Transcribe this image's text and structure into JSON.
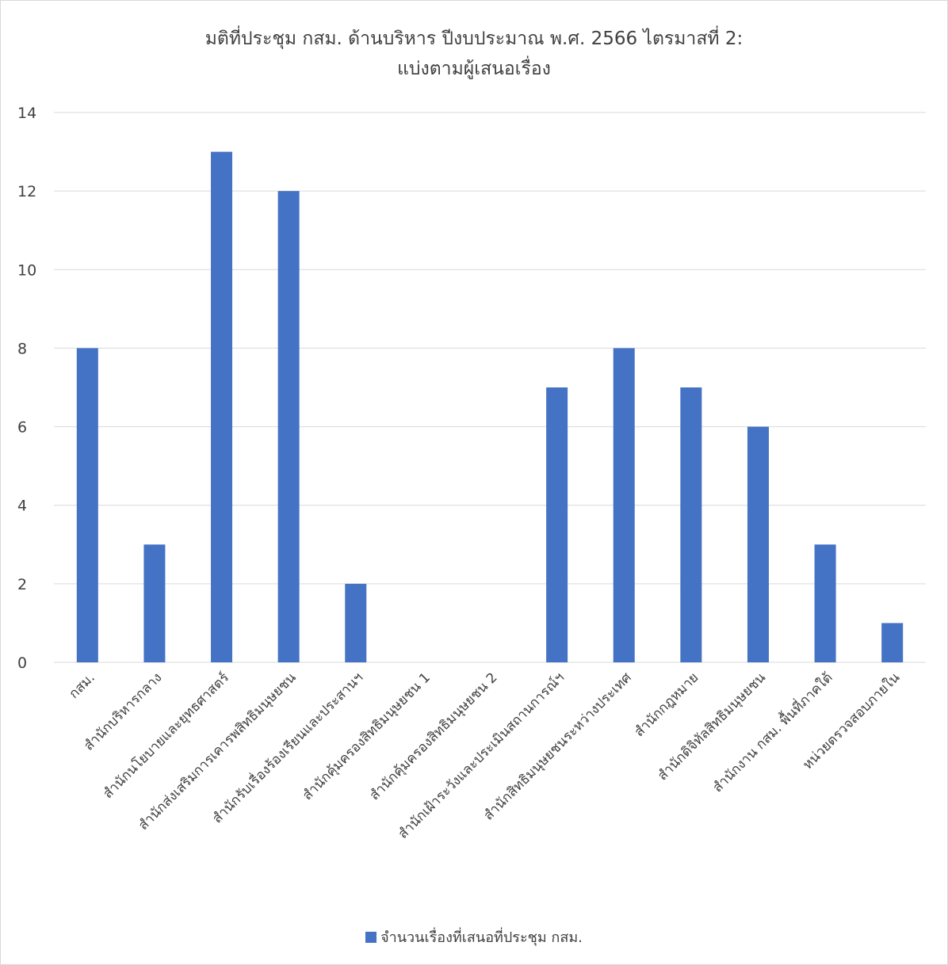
{
  "chart_data": {
    "type": "bar",
    "title_lines": [
      "มติที่ประชุม กสม. ด้านบริหาร ปีงบประมาณ พ.ศ. 2566 ไตรมาสที่ 2:",
      "แบ่งตามผู้เสนอเรื่อง"
    ],
    "categories": [
      "กสม.",
      "สำนักบริหารกลาง",
      "สำนักนโยบายและยุทธศาสตร์",
      "สำนักส่งเสริมการเคารพสิทธิมนุษยชน",
      "สำนักรับเรื่องร้องเรียนและประสานฯ",
      "สำนักคุ้มครองสิทธิมนุษยชน 1",
      "สำนักคุ้มครองสิทธิมนุษยชน 2",
      "สำนักเฝ้าระวังและประเมินสถานการณ์ฯ",
      "สำนักสิทธิมนุษยชนระหว่างประเทศ",
      "สำนักกฎหมาย",
      "สำนักดิจิทัลสิทธิมนุษยชน",
      "สำนักงาน กสม. พื้นที่ภาคใต้",
      "หน่วยตรวจสอบภายใน"
    ],
    "series": [
      {
        "name": "จำนวนเรื่องที่เสนอที่ประชุม กสม.",
        "values": [
          8,
          3,
          13,
          12,
          2,
          0,
          0,
          7,
          8,
          7,
          6,
          3,
          1
        ],
        "color": "#4472C4"
      }
    ],
    "ylim": [
      0,
      14
    ],
    "yticks": [
      0,
      2,
      4,
      6,
      8,
      10,
      12,
      14
    ],
    "grid": true,
    "legend_position": "bottom",
    "gridline_color": "#d9d9d9",
    "text_color": "#404040"
  }
}
